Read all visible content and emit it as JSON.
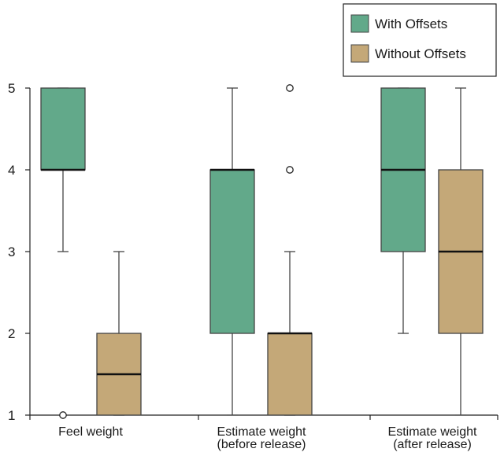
{
  "chart_data": {
    "type": "box",
    "title": "",
    "xlabel": "",
    "ylabel": "",
    "ylim": [
      1,
      5
    ],
    "yticks": [
      "1",
      "2",
      "3",
      "4",
      "5"
    ],
    "grid": false,
    "legend_position": "top-right",
    "categories": [
      [
        "Feel weight"
      ],
      [
        "Estimate weight",
        "(before release)"
      ],
      [
        "Estimate weight",
        "(after release)"
      ]
    ],
    "series": [
      {
        "name": "With Offsets",
        "color": "#62a98a",
        "boxes": [
          {
            "min": 3,
            "q1": 4,
            "median": 4,
            "q3": 5,
            "max": 5,
            "outliers": [
              1
            ]
          },
          {
            "min": 1,
            "q1": 2,
            "median": 4,
            "q3": 4,
            "max": 5,
            "outliers": []
          },
          {
            "min": 2,
            "q1": 3,
            "median": 4,
            "q3": 5,
            "max": 5,
            "outliers": []
          }
        ]
      },
      {
        "name": "Without Offsets",
        "color": "#c4a878",
        "boxes": [
          {
            "min": 1,
            "q1": 1,
            "median": 1.5,
            "q3": 2,
            "max": 3,
            "outliers": []
          },
          {
            "min": 1,
            "q1": 1,
            "median": 2,
            "q3": 2,
            "max": 3,
            "outliers": [
              4,
              5
            ]
          },
          {
            "min": 1,
            "q1": 2,
            "median": 3,
            "q3": 4,
            "max": 5,
            "outliers": []
          }
        ]
      }
    ]
  }
}
